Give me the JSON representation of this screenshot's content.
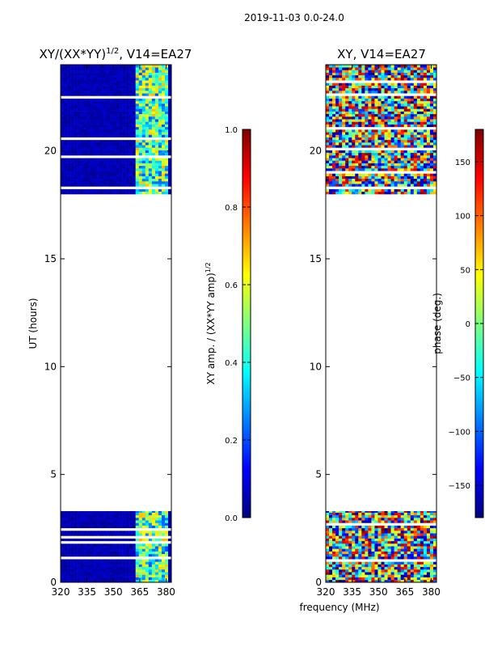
{
  "suptitle": "2019-11-03 0.0-24.0",
  "colors": {
    "jet": [
      "#00007f",
      "#0000ff",
      "#007fff",
      "#00ffff",
      "#7fff7f",
      "#ffff00",
      "#ff7f00",
      "#ff0000",
      "#7f0000"
    ],
    "flagged": "#ffffff"
  },
  "chart_data": [
    {
      "type": "heatmap",
      "title": "XY/(XX*YY)^(1/2), V14=EA27",
      "title_main": "XY/(XX*YY)",
      "title_sup": "1/2",
      "title_rest": ", V14=EA27",
      "xlabel": "frequency (MHz)",
      "ylabel": "UT (hours)",
      "xlim": [
        320,
        383
      ],
      "ylim": [
        0,
        24
      ],
      "xticks": [
        320,
        335,
        350,
        365,
        380
      ],
      "yticks": [
        0,
        5,
        10,
        15,
        20
      ],
      "data_time_ranges_hours": [
        [
          0.0,
          3.3
        ],
        [
          18.0,
          24.0
        ]
      ],
      "flagged_time_range_hours": [
        3.3,
        18.0
      ],
      "colorbar": {
        "label": "XY amp. / (XX*YY amp)^(1/2)",
        "label_main": "XY amp. / (XX*YY amp)",
        "label_sup": "1/2",
        "range": [
          0.0,
          1.0
        ],
        "ticks": [
          "0.0",
          "0.2",
          "0.4",
          "0.6",
          "0.8",
          "1.0"
        ]
      }
    },
    {
      "type": "heatmap",
      "title": "XY, V14=EA27",
      "xlabel": "frequency (MHz)",
      "ylabel": "",
      "xlim": [
        320,
        383
      ],
      "ylim": [
        0,
        24
      ],
      "xticks": [
        320,
        335,
        350,
        365,
        380
      ],
      "yticks": [
        0,
        5,
        10,
        15,
        20
      ],
      "data_time_ranges_hours": [
        [
          0.0,
          3.3
        ],
        [
          18.0,
          24.0
        ]
      ],
      "flagged_time_range_hours": [
        3.3,
        18.0
      ],
      "colorbar": {
        "label": "phase (deg.)",
        "range": [
          -180,
          180
        ],
        "ticks": [
          "150",
          "100",
          "50",
          "0",
          "−50",
          "−100",
          "−150"
        ]
      }
    }
  ]
}
